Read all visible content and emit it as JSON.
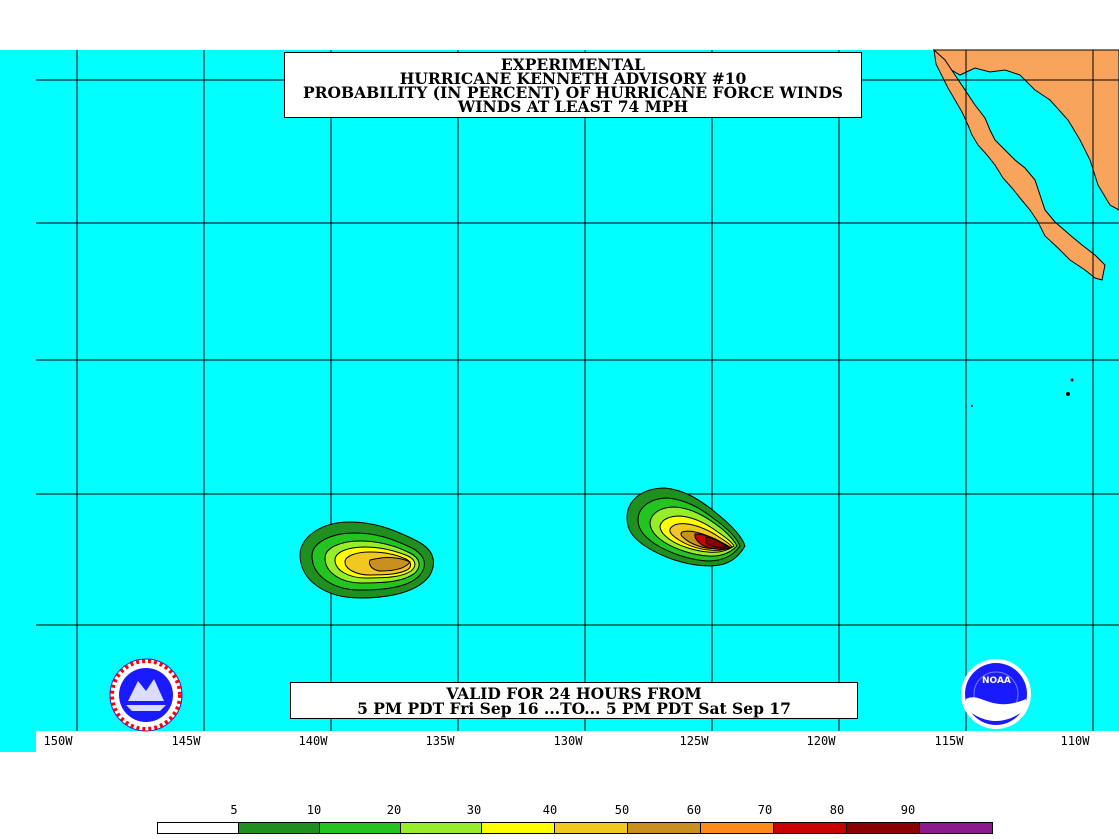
{
  "title": {
    "line1": "EXPERIMENTAL",
    "line2": "HURRICANE KENNETH ADVISORY #10",
    "line3": "PROBABILITY (IN PERCENT) OF HURRICANE FORCE WINDS",
    "line4": "WINDS AT LEAST 74 MPH"
  },
  "validity": {
    "line1": "VALID FOR 24 HOURS FROM",
    "line2": "5 PM PDT Fri Sep 16 ...TO... 5 PM PDT Sat Sep 17"
  },
  "longitude_labels": [
    "150W",
    "145W",
    "140W",
    "135W",
    "130W",
    "125W",
    "120W",
    "115W",
    "110W"
  ],
  "legend": {
    "labels": [
      "5",
      "10",
      "20",
      "30",
      "40",
      "50",
      "60",
      "70",
      "80",
      "90"
    ],
    "colors": [
      "#ffffff",
      "#1f8f1f",
      "#23c41f",
      "#96ee2a",
      "#ffff00",
      "#f0c820",
      "#c8901f",
      "#ff8c1a",
      "#c80000",
      "#8b0000",
      "#8b1a8b"
    ]
  },
  "colors": {
    "ocean": "#00ffff",
    "land": "#f8a45c",
    "grid": "#000000"
  },
  "logos": {
    "left": "national-weather-service-logo",
    "right": "noaa-logo",
    "noaa_text": "NOAA"
  }
}
